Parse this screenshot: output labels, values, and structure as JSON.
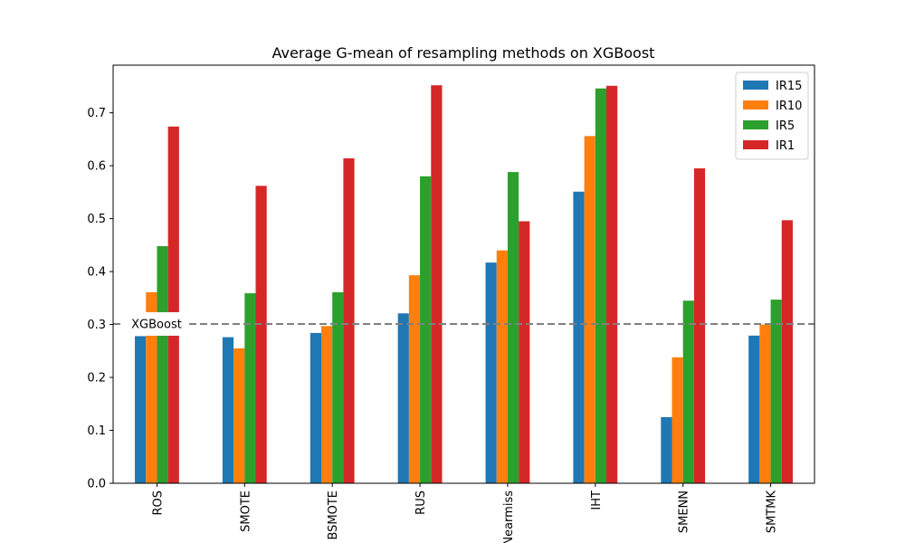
{
  "chart_data": {
    "type": "bar",
    "title": "Average G-mean of resampling methods on XGBoost",
    "xlabel": "",
    "ylabel": "",
    "categories": [
      "ROS",
      "SMOTE",
      "BSMOTE",
      "RUS",
      "Nearmiss",
      "IHT",
      "SMENN",
      "SMTMK"
    ],
    "series": [
      {
        "name": "IR15",
        "color": "#1f77b4",
        "values": [
          0.278,
          0.276,
          0.284,
          0.321,
          0.417,
          0.551,
          0.125,
          0.279
        ]
      },
      {
        "name": "IR10",
        "color": "#ff7f0e",
        "values": [
          0.361,
          0.255,
          0.297,
          0.393,
          0.44,
          0.656,
          0.238,
          0.3
        ]
      },
      {
        "name": "IR5",
        "color": "#2ca02c",
        "values": [
          0.448,
          0.359,
          0.361,
          0.58,
          0.588,
          0.746,
          0.345,
          0.347
        ]
      },
      {
        "name": "IR1",
        "color": "#d62728",
        "values": [
          0.674,
          0.562,
          0.614,
          0.752,
          0.495,
          0.751,
          0.595,
          0.497
        ]
      }
    ],
    "ylim": [
      0,
      0.79
    ],
    "yticks": [
      0.0,
      0.1,
      0.2,
      0.3,
      0.4,
      0.5,
      0.6,
      0.7
    ],
    "baseline": {
      "label": "XGBoost",
      "value": 0.301,
      "color": "#808080"
    },
    "grid": false,
    "legend": "top-right"
  }
}
